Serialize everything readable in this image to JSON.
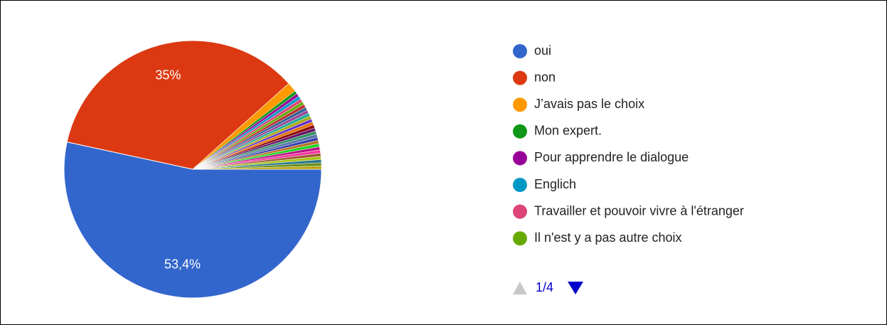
{
  "chart_data": {
    "type": "pie",
    "categories": [
      "oui",
      "non",
      "J’avais pas le choix",
      "Mon expert.",
      "Pour apprendre le dialogue",
      "Englich",
      "Travailler et pouvoir vivre à l'étranger",
      "Il n'est y a pas autre choix",
      null,
      null,
      null,
      null,
      null,
      null,
      null,
      null,
      null,
      null,
      null,
      null,
      null,
      null,
      null,
      null,
      null,
      null,
      null,
      null,
      null
    ],
    "values": [
      53.4,
      35,
      1.2,
      0.4,
      0.4,
      0.4,
      0.4,
      0.4,
      0.4,
      0.4,
      0.4,
      0.4,
      0.4,
      0.4,
      0.4,
      0.4,
      0.4,
      0.4,
      0.4,
      0.4,
      0.4,
      0.4,
      0.4,
      0.4,
      0.4,
      0.4,
      0.4,
      0.4,
      0.4
    ],
    "value_labels": [
      "53,4%",
      "35%",
      null,
      null,
      null,
      null,
      null,
      null,
      null,
      null,
      null,
      null,
      null,
      null,
      null,
      null,
      null,
      null,
      null,
      null,
      null,
      null,
      null,
      null,
      null,
      null,
      null,
      null,
      null
    ],
    "colors": [
      "#3366cc",
      "#dc3912",
      "#ff9900",
      "#109618",
      "#990099",
      "#0099c6",
      "#dd4477",
      "#66aa00",
      "#b82e2e",
      "#316395",
      "#994499",
      "#22aa99",
      "#aaaa11",
      "#6633cc",
      "#e67300",
      "#8b0707",
      "#651067",
      "#329262",
      "#5574a6",
      "#3b3eac",
      "#b77322",
      "#16d620",
      "#b91383",
      "#f4359e",
      "#9c5935",
      "#a9c413",
      "#2a778d",
      "#668d1c",
      "#bea413"
    ],
    "legend_page": "1/4"
  }
}
